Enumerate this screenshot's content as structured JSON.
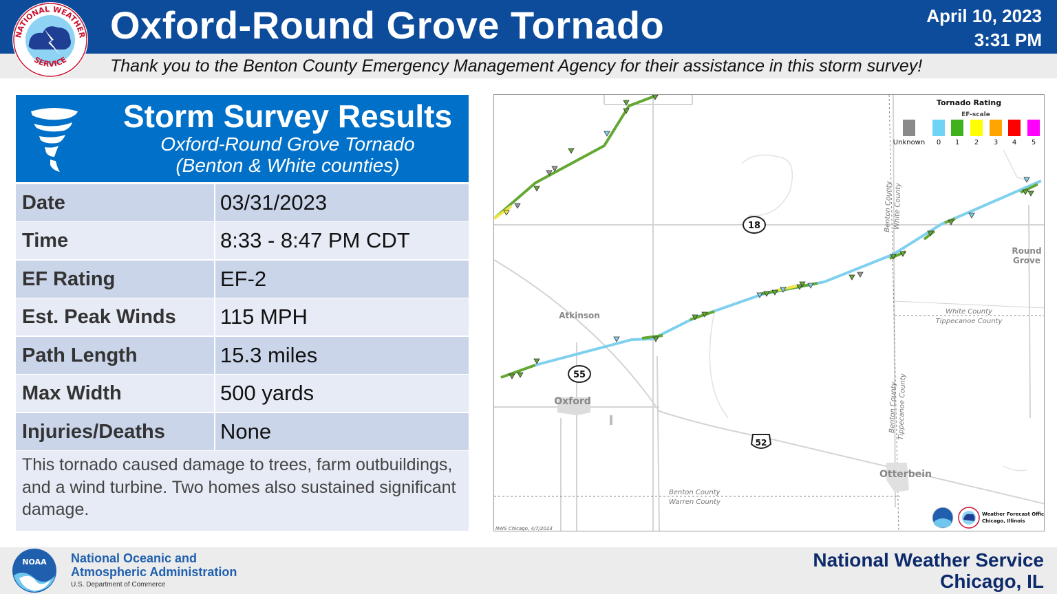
{
  "header": {
    "title": "Oxford-Round Grove Tornado",
    "date": "April 10, 2023",
    "time": "3:31 PM",
    "thanks": "Thank you to the Benton County Emergency Management Agency for their assistance in this storm survey!",
    "logo_icon": "nws-logo",
    "logo_text_top": "NATIONAL WEATHER",
    "logo_text_bottom": "SERVICE"
  },
  "survey": {
    "title": "Storm Survey Results",
    "subtitle_line1": "Oxford-Round Grove Tornado",
    "subtitle_line2": "(Benton & White counties)",
    "icon": "tornado-icon",
    "rows": [
      {
        "label": "Date",
        "value": "03/31/2023"
      },
      {
        "label": "Time",
        "value": "8:33 - 8:47 PM CDT"
      },
      {
        "label": "EF Rating",
        "value": "EF-2"
      },
      {
        "label": "Est. Peak Winds",
        "value": "115 MPH"
      },
      {
        "label": "Path Length",
        "value": "15.3 miles"
      },
      {
        "label": "Max Width",
        "value": "500 yards"
      },
      {
        "label": "Injuries/Deaths",
        "value": "None"
      }
    ],
    "description": "This tornado caused damage to trees, farm outbuildings, and a wind turbine. Two homes also sustained significant damage."
  },
  "map": {
    "legend": {
      "title": "Tornado Rating",
      "subtitle": "EF-scale",
      "items": [
        {
          "label": "Unknown",
          "color": "#8a8a8a"
        },
        {
          "label": "0",
          "color": "#6fd3f5"
        },
        {
          "label": "1",
          "color": "#3fb11d"
        },
        {
          "label": "2",
          "color": "#ffff00"
        },
        {
          "label": "3",
          "color": "#ffa500"
        },
        {
          "label": "4",
          "color": "#ff0000"
        },
        {
          "label": "5",
          "color": "#ff00ff"
        }
      ]
    },
    "towns": {
      "atkinson": "Atkinson",
      "oxford": "Oxford",
      "otterbein": "Otterbein",
      "round_grove_1": "Round",
      "round_grove_2": "Grove"
    },
    "routes": {
      "r18": "18",
      "r55": "55",
      "r52": "52"
    },
    "county_lines": {
      "benton_white_1": "Benton County",
      "benton_white_2": "White County",
      "white_tippecanoe_1": "White County",
      "white_tippecanoe_2": "Tippecanoe County",
      "benton_tippecanoe_1": "Benton County",
      "benton_tippecanoe_2": "Tippecanoe County",
      "benton_warren_1": "Benton County",
      "benton_warren_2": "Warren County"
    },
    "credit": "NWS Chicago, 4/7/2023",
    "wfo_line1": "Weather Forecast Office",
    "wfo_line2": "Chicago, Illinois",
    "track_color_ef0": "#7fd0ee",
    "track_color_ef1": "#62a832"
  },
  "footer": {
    "noaa_line1": "National Oceanic and",
    "noaa_line2": "Atmospheric Administration",
    "noaa_dept": "U.S. Department of Commerce",
    "noaa_logo_text": "NOAA",
    "office_line1": "National Weather Service",
    "office_line2": "Chicago, IL"
  }
}
